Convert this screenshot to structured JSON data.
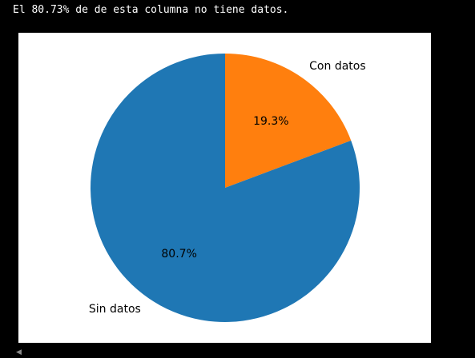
{
  "output": {
    "text": "El 80.73% de de esta columna no tiene datos."
  },
  "chart_data": {
    "type": "pie",
    "title": "",
    "start_angle_deg": 90,
    "direction": "clockwise",
    "slices": [
      {
        "label": "Con datos",
        "value": 19.27,
        "pct_label": "19.3%",
        "color": "#ff7f0e"
      },
      {
        "label": "Sin datos",
        "value": 80.73,
        "pct_label": "80.7%",
        "color": "#1f77b4"
      }
    ]
  },
  "scrollbar": {
    "left_arrow_icon": "triangle-left-icon"
  }
}
